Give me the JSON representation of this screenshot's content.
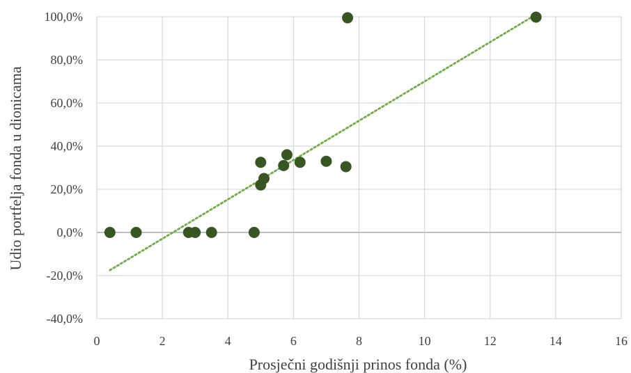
{
  "chart_data": {
    "type": "scatter",
    "xlabel": "Prosječni godišnji prinos fonda (%)",
    "ylabel": "Udio portfelja fonda u dionicama",
    "xlim": [
      0,
      16
    ],
    "ylim": [
      -40,
      100
    ],
    "x_ticks": [
      "0",
      "2",
      "4",
      "6",
      "8",
      "10",
      "12",
      "14",
      "16"
    ],
    "y_ticks": [
      "-40,0%",
      "-20,0%",
      "0,0%",
      "20,0%",
      "40,0%",
      "60,0%",
      "80,0%",
      "100,0%"
    ],
    "grid": true,
    "legend": "none",
    "series": [
      {
        "color": "#375623",
        "points": [
          {
            "x": 0.4,
            "y": 0
          },
          {
            "x": 1.2,
            "y": 0
          },
          {
            "x": 2.8,
            "y": 0
          },
          {
            "x": 3.0,
            "y": 0
          },
          {
            "x": 3.5,
            "y": 0
          },
          {
            "x": 4.8,
            "y": 0
          },
          {
            "x": 5.0,
            "y": 32.5
          },
          {
            "x": 5.0,
            "y": 22.0
          },
          {
            "x": 5.1,
            "y": 25.0
          },
          {
            "x": 5.7,
            "y": 31.0
          },
          {
            "x": 5.8,
            "y": 36.0
          },
          {
            "x": 6.2,
            "y": 32.5
          },
          {
            "x": 7.0,
            "y": 33.0
          },
          {
            "x": 7.6,
            "y": 30.5
          },
          {
            "x": 7.65,
            "y": 99.5
          },
          {
            "x": 13.4,
            "y": 99.8
          }
        ]
      }
    ],
    "trendline": {
      "style": "dotted",
      "color": "#70AD47",
      "x_range": [
        0.4,
        13.4
      ],
      "y_range": [
        -17.5,
        101
      ]
    }
  }
}
